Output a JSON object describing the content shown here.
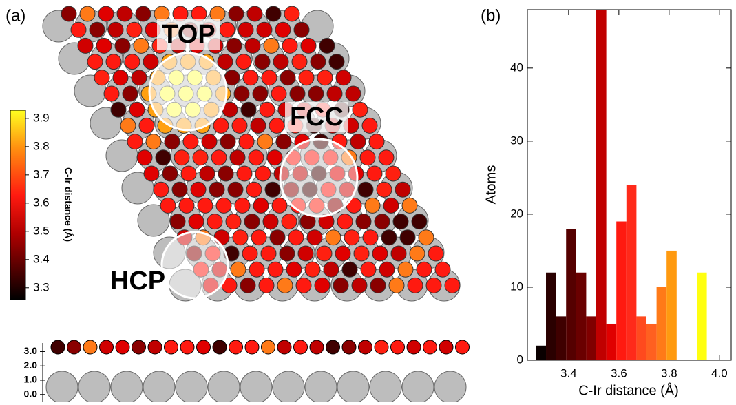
{
  "panel_a": {
    "label": "(a)",
    "sites": [
      "TOP",
      "FCC",
      "HCP"
    ],
    "colorbar": {
      "title": "C-Ir distance (Å)",
      "lim": [
        3.258,
        3.929
      ],
      "ticks": [
        3.3,
        3.4,
        3.5,
        3.6,
        3.7,
        3.8,
        3.9
      ]
    },
    "side_view": {
      "ylim": [
        -0.35,
        3.6
      ],
      "yticks": [
        {
          "value": 0,
          "label": "0.0"
        },
        {
          "value": 1,
          "label": "1.0"
        },
        {
          "value": 2,
          "label": "2.0"
        },
        {
          "value": 3,
          "label": "3.0"
        }
      ]
    }
  },
  "chart_data": {
    "type": "histogram",
    "label": "(b)",
    "x_label": "C-Ir distance (Å)",
    "y_label": "Atoms",
    "bins": [
      3.27,
      3.31,
      3.35,
      3.39,
      3.43,
      3.47,
      3.51,
      3.55,
      3.59,
      3.63,
      3.67,
      3.71,
      3.75,
      3.79,
      3.83,
      3.87,
      3.91,
      3.95
    ],
    "values": [
      2,
      12,
      6,
      18,
      12,
      6,
      48,
      5,
      19,
      24,
      6,
      5,
      10,
      15,
      0,
      0,
      12
    ],
    "colors": [
      "#0a0000",
      "#2a0000",
      "#3f0000",
      "#550000",
      "#6a0000",
      "#800000",
      "#c00000",
      "#e00000",
      "#ff1a10",
      "#ff2a1a",
      "#ff4a1e",
      "#ff6020",
      "#ff7a18",
      "#ff9a10",
      "#ffb000",
      "#ffd000",
      "#ffff10"
    ],
    "xlim": [
      3.236,
      4.047
    ],
    "ylim": [
      0,
      48
    ],
    "xticks": [
      3.4,
      3.6,
      3.8,
      {
        "value": 4,
        "label": "4.0"
      }
    ],
    "yticks": [
      0,
      10,
      20,
      30,
      40
    ]
  }
}
